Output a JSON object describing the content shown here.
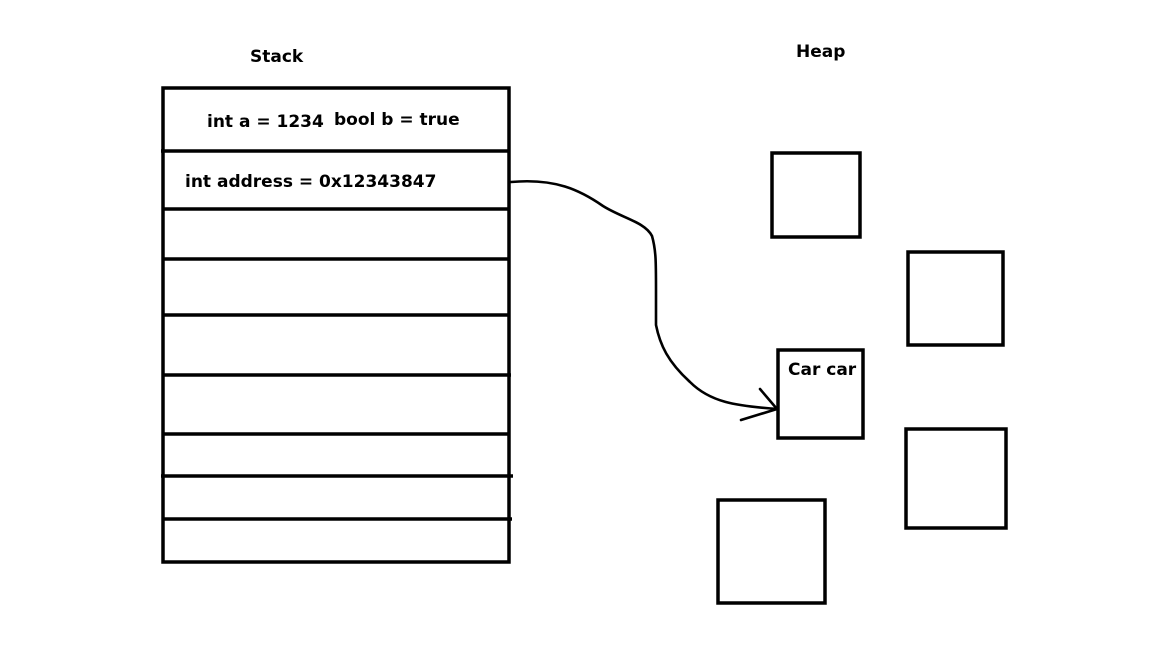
{
  "stack": {
    "title": "Stack",
    "row1_left": "int a = 1234",
    "row1_right": "bool b = true",
    "row2": "int address = 0x12343847"
  },
  "heap": {
    "title": "Heap",
    "object_label": "Car car"
  },
  "colors": {
    "ink": "#000000",
    "background": "#ffffff"
  }
}
